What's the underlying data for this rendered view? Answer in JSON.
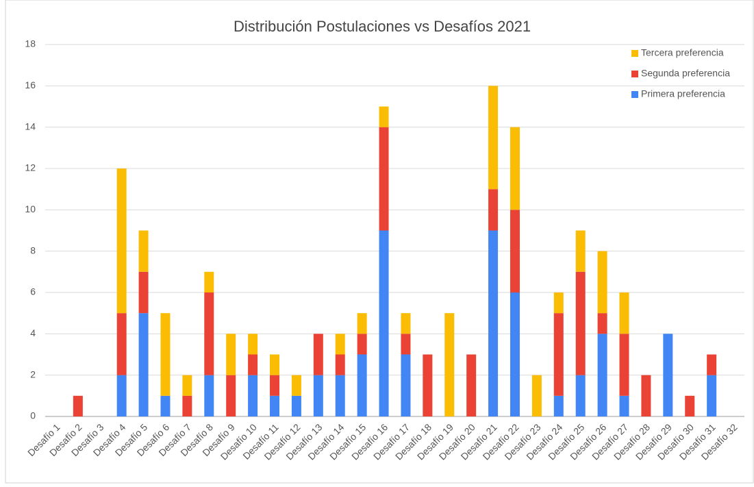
{
  "chart_data": {
    "type": "stacked_bar",
    "title": "Distribución Postulaciones vs Desafíos 2021",
    "categories": [
      "Desafío 1",
      "Desafío 2",
      "Desafío 3",
      "Desafío 4",
      "Desafío 5",
      "Desafío 6",
      "Desafío 7",
      "Desafío 8",
      "Desafío 9",
      "Desafío 10",
      "Desafío 11",
      "Desafío 12",
      "Desafío 13",
      "Desafío 14",
      "Desafío 15",
      "Desafío 16",
      "Desafío 17",
      "Desafío 18",
      "Desafío 19",
      "Desafío 20",
      "Desafío 21",
      "Desafío 22",
      "Desafío 23",
      "Desafío 24",
      "Desafío 25",
      "Desafío 26",
      "Desafío 27",
      "Desafío 28",
      "Desafío 29",
      "Desafío 30",
      "Desafío 31",
      "Desafío 32"
    ],
    "series": [
      {
        "name": "Primera preferencia",
        "color": "#4285f4",
        "values": [
          0,
          0,
          0,
          2,
          5,
          1,
          0,
          2,
          0,
          2,
          1,
          1,
          2,
          2,
          3,
          9,
          3,
          0,
          0,
          0,
          9,
          6,
          0,
          1,
          2,
          4,
          1,
          0,
          4,
          0,
          2,
          0
        ]
      },
      {
        "name": "Segunda preferencia",
        "color": "#ea4335",
        "values": [
          0,
          1,
          0,
          3,
          2,
          0,
          1,
          4,
          2,
          1,
          1,
          0,
          2,
          1,
          1,
          5,
          1,
          3,
          0,
          3,
          2,
          4,
          0,
          4,
          5,
          1,
          3,
          2,
          0,
          1,
          1,
          0
        ]
      },
      {
        "name": "Tercera preferencia",
        "color": "#fbbc04",
        "values": [
          0,
          0,
          0,
          7,
          2,
          4,
          1,
          1,
          2,
          1,
          1,
          1,
          0,
          1,
          1,
          1,
          1,
          0,
          5,
          0,
          5,
          4,
          2,
          1,
          2,
          3,
          2,
          0,
          0,
          0,
          0,
          0
        ]
      }
    ],
    "ylim": [
      0,
      18
    ],
    "yticks": [
      0,
      2,
      4,
      6,
      8,
      10,
      12,
      14,
      16,
      18
    ],
    "grid": true,
    "legend": "top-right"
  }
}
